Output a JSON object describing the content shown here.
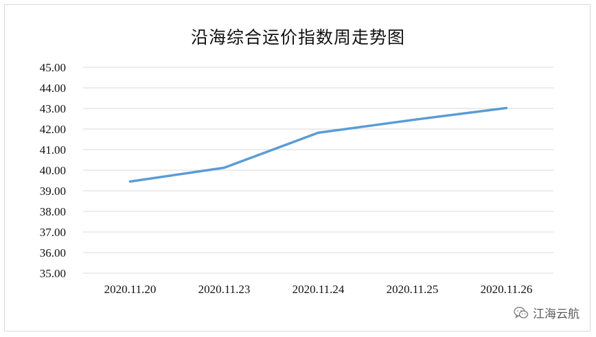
{
  "chart_data": {
    "type": "line",
    "title": "沿海综合运价指数周走势图",
    "categories": [
      "2020.11.20",
      "2020.11.23",
      "2020.11.24",
      "2020.11.25",
      "2020.11.26"
    ],
    "values": [
      39.45,
      40.12,
      41.82,
      42.44,
      43.02
    ],
    "yticks": [
      "45.00",
      "44.00",
      "43.00",
      "42.00",
      "41.00",
      "40.00",
      "39.00",
      "38.00",
      "37.00",
      "36.00",
      "35.00"
    ],
    "ylim": [
      35,
      45
    ],
    "grid": true,
    "line_color": "#5b9bd5"
  },
  "watermark": {
    "icon": "wechat-icon",
    "text": "江海云航"
  }
}
